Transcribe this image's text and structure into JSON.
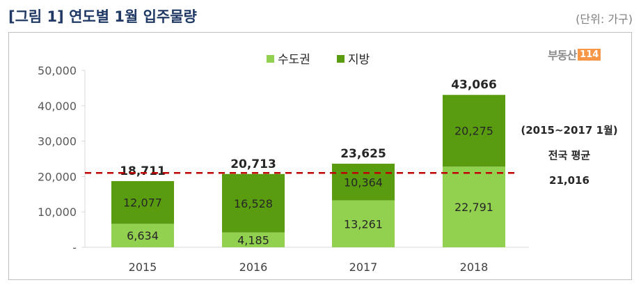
{
  "title": "[그림 1] 연도별 1월 입주물량",
  "unit_label": "(단위: 가구)",
  "brand": {
    "text": "부동산",
    "badge": "114"
  },
  "chart_data": {
    "type": "bar",
    "stacked": true,
    "categories": [
      "2015",
      "2016",
      "2017",
      "2018"
    ],
    "series": [
      {
        "name": "수도권",
        "values": [
          6634,
          4185,
          13261,
          22791
        ],
        "color": "#92d050"
      },
      {
        "name": "지방",
        "values": [
          12077,
          16528,
          10364,
          20275
        ],
        "color": "#5a9c0f"
      }
    ],
    "totals": [
      18711,
      20713,
      23625,
      43066
    ],
    "value_labels": {
      "수도권": [
        "6,634",
        "4,185",
        "13,261",
        "22,791"
      ],
      "지방": [
        "12,077",
        "16,528",
        "10,364",
        "20,275"
      ],
      "totals": [
        "18,711",
        "20,713",
        "23,625",
        "43,066"
      ]
    },
    "y_ticks": [
      0,
      10000,
      20000,
      30000,
      40000,
      50000
    ],
    "y_tick_labels": [
      "-",
      "10,000",
      "20,000",
      "30,000",
      "40,000",
      "50,000"
    ],
    "ylim": [
      0,
      50000
    ],
    "legend_position": "top-center",
    "reference_line": {
      "value": 21016,
      "color": "#c00000",
      "style": "dashed",
      "label_lines": [
        "(2015~2017 1월)",
        "전국 평균",
        "21,016"
      ]
    },
    "grid": false
  }
}
